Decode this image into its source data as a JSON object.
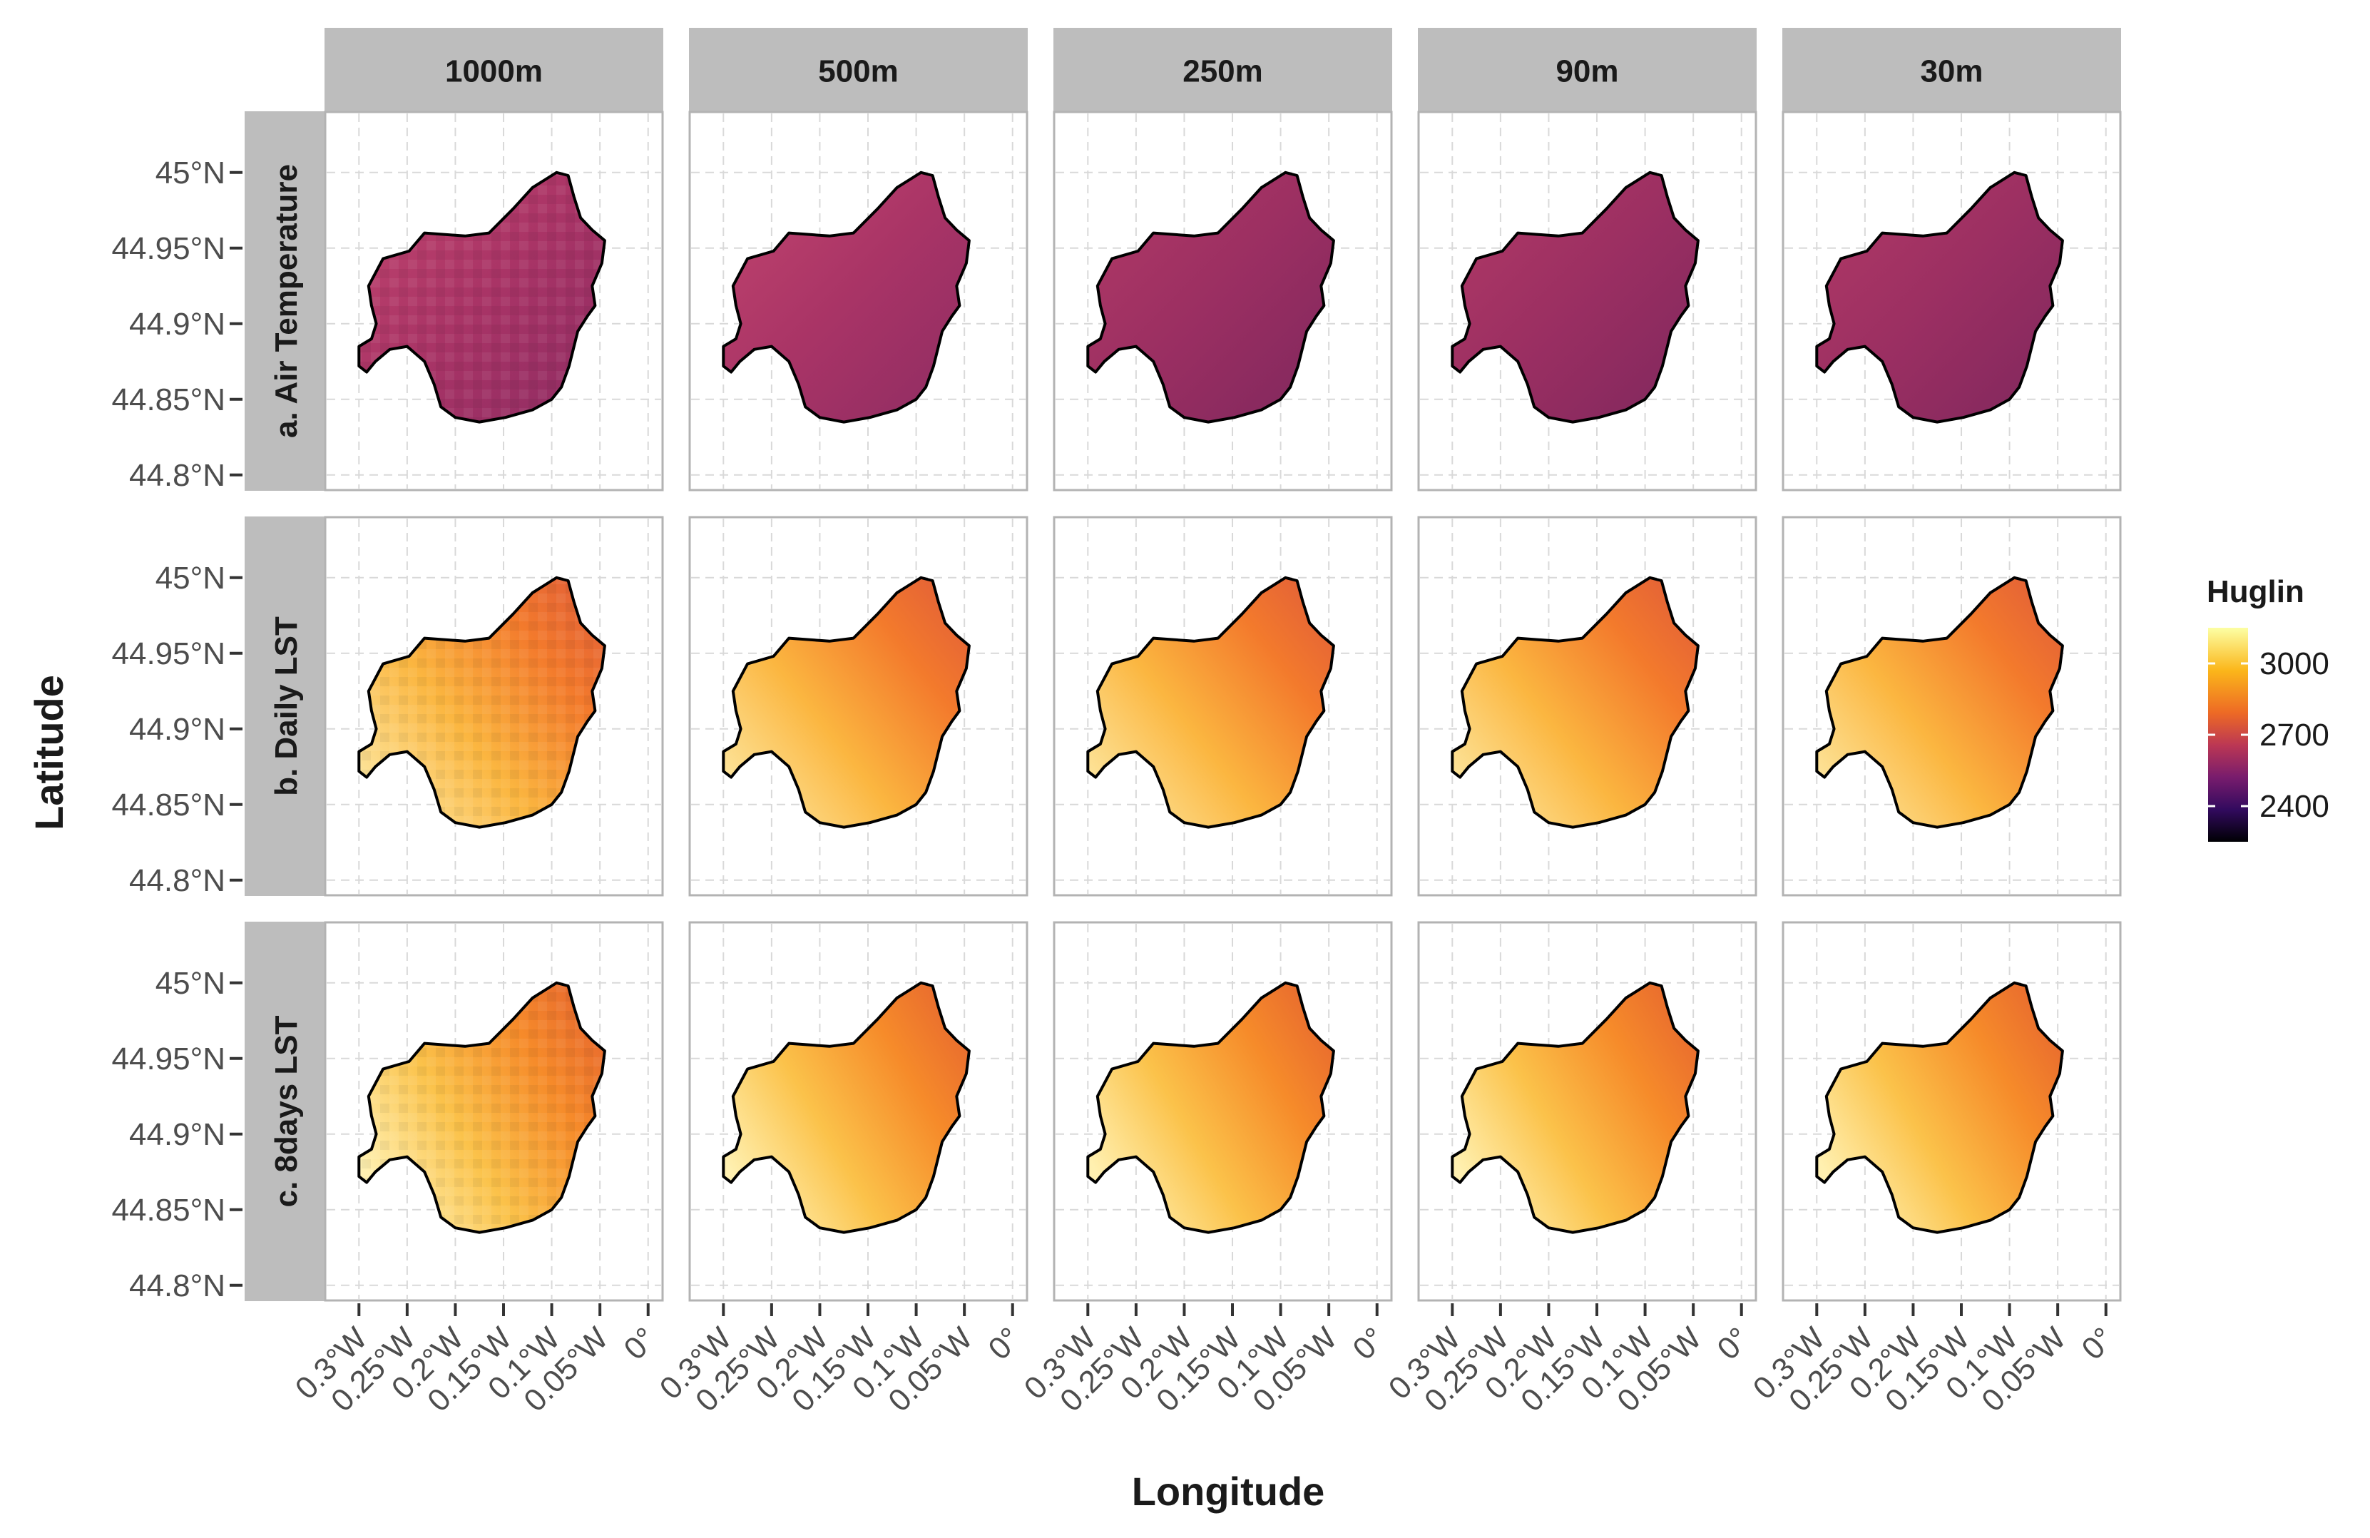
{
  "chart_data": {
    "type": "heatmap",
    "title": "",
    "xlabel": "Longitude",
    "ylabel": "Latitude",
    "columns": [
      "1000m",
      "500m",
      "250m",
      "90m",
      "30m"
    ],
    "rows": [
      "a. Air Temperature",
      "b. Daily LST",
      "c. 8days LST"
    ],
    "x_ticks": [
      {
        "value": -0.3,
        "label": "0.3°W"
      },
      {
        "value": -0.25,
        "label": "0.25°W"
      },
      {
        "value": -0.2,
        "label": "0.2°W"
      },
      {
        "value": -0.15,
        "label": "0.15°W"
      },
      {
        "value": -0.1,
        "label": "0.1°W"
      },
      {
        "value": -0.05,
        "label": "0.05°W"
      },
      {
        "value": 0,
        "label": "0°"
      }
    ],
    "y_ticks": [
      {
        "value": 45.0,
        "label": "45°N"
      },
      {
        "value": 44.95,
        "label": "44.95°N"
      },
      {
        "value": 44.9,
        "label": "44.9°N"
      },
      {
        "value": 44.85,
        "label": "44.85°N"
      },
      {
        "value": 44.8,
        "label": "44.8°N"
      }
    ],
    "xlim": [
      -0.335,
      0.015
    ],
    "ylim": [
      44.79,
      45.04
    ],
    "legend": {
      "title": "Huglin",
      "position": "right",
      "range": [
        2250,
        3150
      ],
      "ticks": [
        3000,
        2700,
        2400
      ],
      "colormap": "inferno"
    },
    "panel_values": [
      {
        "row": "a. Air Temperature",
        "approx_huglin_range": [
          2600,
          2780
        ]
      },
      {
        "row": "b. Daily LST",
        "approx_huglin_range": [
          2750,
          3150
        ]
      },
      {
        "row": "c. 8days LST",
        "approx_huglin_range": [
          2800,
          3150
        ]
      }
    ],
    "grid": true
  }
}
